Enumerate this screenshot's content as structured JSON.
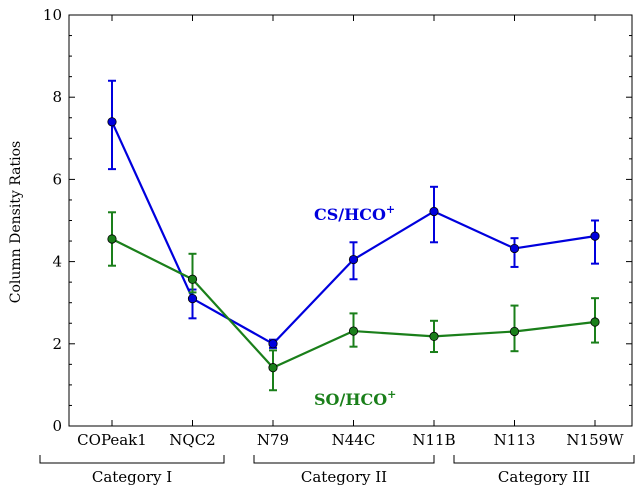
{
  "chart_data": {
    "type": "line",
    "categories": [
      "COPeak1",
      "NQC2",
      "N79",
      "N44C",
      "N11B",
      "N113",
      "N159W"
    ],
    "ylabel": "Column Density Ratios",
    "ylim": [
      0,
      10
    ],
    "yticks": [
      0,
      2,
      4,
      6,
      8,
      10
    ],
    "grid": false,
    "series": [
      {
        "name": "CS/HCO⁺",
        "label_main": "CS/HCO",
        "label_sup": "+",
        "color": "#0000dd",
        "values": [
          7.4,
          3.1,
          2.0,
          4.05,
          5.22,
          4.32,
          4.62
        ],
        "err_low": [
          1.15,
          0.48,
          0.1,
          0.48,
          0.75,
          0.45,
          0.67
        ],
        "err_high": [
          1.0,
          0.22,
          0.1,
          0.42,
          0.6,
          0.25,
          0.38
        ]
      },
      {
        "name": "SO/HCO⁺",
        "label_main": "SO/HCO",
        "label_sup": "+",
        "color": "#1a7f1a",
        "values": [
          4.55,
          3.57,
          1.42,
          2.31,
          2.18,
          2.3,
          2.53
        ],
        "err_low": [
          0.65,
          0.32,
          0.55,
          0.38,
          0.38,
          0.48,
          0.5
        ],
        "err_high": [
          0.65,
          0.62,
          0.42,
          0.43,
          0.38,
          0.63,
          0.58
        ]
      }
    ],
    "groups": [
      {
        "label": "Category I",
        "from": 0,
        "to": 1
      },
      {
        "label": "Category II",
        "from": 2,
        "to": 4
      },
      {
        "label": "Category III",
        "from": 5,
        "to": 6
      }
    ]
  }
}
